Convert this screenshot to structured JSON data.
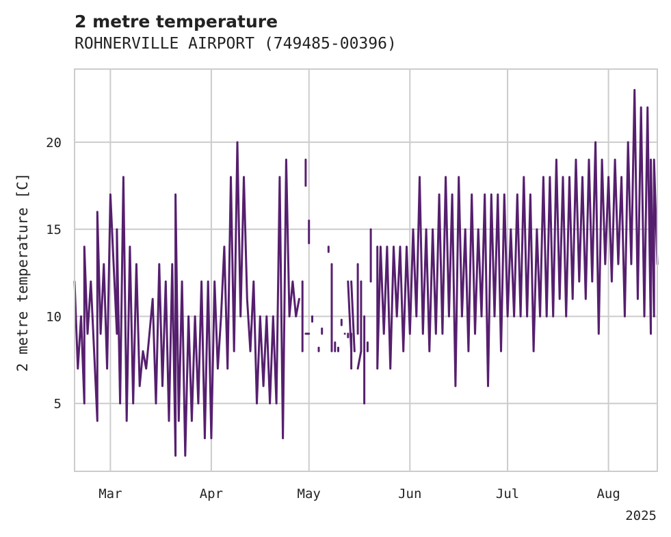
{
  "chart_data": {
    "type": "line",
    "title": "2 metre temperature",
    "subtitle": "ROHNERVILLE AIRPORT (749485-00396)",
    "xlabel": "",
    "ylabel": "2 metre temperature [C]",
    "x_ticks": [
      {
        "date": "2025-03-01",
        "label": "Mar"
      },
      {
        "date": "2025-04-01",
        "label": "Apr"
      },
      {
        "date": "2025-05-01",
        "label": "May"
      },
      {
        "date": "2025-06-01",
        "label": "Jun"
      },
      {
        "date": "2025-07-01",
        "label": "Jul"
      },
      {
        "date": "2025-08-01",
        "label": "Aug"
      }
    ],
    "x_year_label": "2025",
    "y_ticks": [
      5,
      10,
      15,
      20
    ],
    "xlim": [
      "2025-02-18",
      "2025-08-16"
    ],
    "ylim": [
      1.1,
      24.2
    ],
    "grid": true,
    "color": "#561f6e",
    "series": [
      {
        "points": [
          [
            "2025-02-18",
            12
          ],
          [
            "2025-02-19",
            7
          ],
          [
            "2025-02-20",
            10
          ],
          [
            "2025-02-21",
            5
          ],
          [
            "2025-02-21",
            14
          ],
          [
            "2025-02-22",
            9
          ],
          [
            "2025-02-23",
            12
          ],
          [
            "2025-02-24",
            8
          ],
          [
            "2025-02-25",
            4
          ],
          [
            "2025-02-25",
            16
          ],
          [
            "2025-02-26",
            9
          ],
          [
            "2025-02-27",
            13
          ],
          [
            "2025-02-28",
            7
          ],
          [
            "2025-03-01",
            17
          ],
          [
            "2025-03-02",
            13
          ],
          [
            "2025-03-03",
            9
          ],
          [
            "2025-03-03",
            15
          ],
          [
            "2025-03-04",
            5
          ],
          [
            "2025-03-05",
            18
          ],
          [
            "2025-03-06",
            4
          ],
          [
            "2025-03-07",
            14
          ],
          [
            "2025-03-08",
            5
          ],
          [
            "2025-03-09",
            13
          ],
          [
            "2025-03-10",
            6
          ],
          [
            "2025-03-11",
            8
          ],
          [
            "2025-03-12",
            7
          ],
          [
            "2025-03-13",
            9
          ],
          [
            "2025-03-14",
            11
          ],
          [
            "2025-03-15",
            5
          ],
          [
            "2025-03-16",
            13
          ],
          [
            "2025-03-17",
            6
          ],
          [
            "2025-03-18",
            12
          ],
          [
            "2025-03-19",
            4
          ],
          [
            "2025-03-20",
            13
          ],
          [
            "2025-03-21",
            2
          ],
          [
            "2025-03-21",
            17
          ],
          [
            "2025-03-22",
            4
          ],
          [
            "2025-03-23",
            12
          ],
          [
            "2025-03-24",
            2
          ],
          [
            "2025-03-25",
            10
          ],
          [
            "2025-03-26",
            4
          ],
          [
            "2025-03-27",
            10
          ],
          [
            "2025-03-28",
            5
          ],
          [
            "2025-03-29",
            12
          ],
          [
            "2025-03-30",
            3
          ],
          [
            "2025-03-31",
            12
          ],
          [
            "2025-04-01",
            3
          ],
          [
            "2025-04-02",
            12
          ],
          [
            "2025-04-03",
            7
          ],
          [
            "2025-04-04",
            10
          ],
          [
            "2025-04-05",
            14
          ],
          [
            "2025-04-06",
            7
          ],
          [
            "2025-04-07",
            18
          ],
          [
            "2025-04-08",
            8
          ],
          [
            "2025-04-09",
            20
          ],
          [
            "2025-04-10",
            10
          ],
          [
            "2025-04-11",
            18
          ],
          [
            "2025-04-12",
            11
          ],
          [
            "2025-04-13",
            8
          ],
          [
            "2025-04-14",
            12
          ],
          [
            "2025-04-15",
            5
          ],
          [
            "2025-04-16",
            10
          ],
          [
            "2025-04-17",
            6
          ],
          [
            "2025-04-18",
            10
          ],
          [
            "2025-04-19",
            5
          ],
          [
            "2025-04-20",
            10
          ],
          [
            "2025-04-21",
            5
          ],
          [
            "2025-04-22",
            18
          ],
          [
            "2025-04-23",
            3
          ],
          [
            "2025-04-24",
            19
          ],
          [
            "2025-04-25",
            10
          ],
          [
            "2025-04-26",
            12
          ],
          [
            "2025-04-27",
            10
          ],
          [
            "2025-04-28",
            11
          ]
        ]
      },
      {
        "points": [
          [
            "2025-04-29",
            12
          ],
          [
            "2025-04-29",
            8
          ]
        ]
      },
      {
        "points": [
          [
            "2025-04-30",
            19
          ],
          [
            "2025-04-30",
            17.5
          ]
        ]
      },
      {
        "points": [
          [
            "2025-05-01",
            15.5
          ],
          [
            "2025-05-01",
            14.2
          ]
        ]
      },
      {
        "points": [
          [
            "2025-04-30",
            9
          ],
          [
            "2025-05-01",
            9
          ]
        ]
      },
      {
        "points": [
          [
            "2025-05-02",
            10
          ],
          [
            "2025-05-02",
            9.7
          ]
        ]
      },
      {
        "points": [
          [
            "2025-05-04",
            8
          ],
          [
            "2025-05-04",
            8.2
          ]
        ]
      },
      {
        "points": [
          [
            "2025-05-05",
            9.3
          ],
          [
            "2025-05-05",
            9
          ]
        ]
      },
      {
        "points": [
          [
            "2025-05-07",
            14
          ],
          [
            "2025-05-07",
            13.7
          ]
        ]
      },
      {
        "points": [
          [
            "2025-05-08",
            13
          ],
          [
            "2025-05-08",
            8
          ]
        ]
      },
      {
        "points": [
          [
            "2025-05-09",
            8.5
          ],
          [
            "2025-05-09",
            8
          ]
        ]
      },
      {
        "points": [
          [
            "2025-05-10",
            8
          ],
          [
            "2025-05-10",
            8.2
          ]
        ]
      },
      {
        "points": [
          [
            "2025-05-11",
            9.8
          ],
          [
            "2025-05-11",
            9.5
          ]
        ]
      },
      {
        "points": [
          [
            "2025-05-12",
            9
          ],
          [
            "2025-05-12",
            9
          ]
        ]
      },
      {
        "points": [
          [
            "2025-05-13",
            9
          ],
          [
            "2025-05-13",
            8.8
          ]
        ]
      },
      {
        "points": [
          [
            "2025-05-13",
            12
          ],
          [
            "2025-05-14",
            8
          ]
        ]
      },
      {
        "points": [
          [
            "2025-05-14",
            7
          ],
          [
            "2025-05-14",
            9
          ]
        ]
      },
      {
        "points": [
          [
            "2025-05-14",
            12
          ],
          [
            "2025-05-15",
            8
          ]
        ]
      },
      {
        "points": [
          [
            "2025-05-16",
            13
          ],
          [
            "2025-05-16",
            9
          ]
        ]
      },
      {
        "points": [
          [
            "2025-05-16",
            7
          ],
          [
            "2025-05-17",
            8
          ]
        ]
      },
      {
        "points": [
          [
            "2025-05-17",
            12
          ],
          [
            "2025-05-17",
            8
          ]
        ]
      },
      {
        "points": [
          [
            "2025-05-18",
            10
          ],
          [
            "2025-05-18",
            5
          ]
        ]
      },
      {
        "points": [
          [
            "2025-05-19",
            8
          ],
          [
            "2025-05-19",
            8.5
          ]
        ]
      },
      {
        "points": [
          [
            "2025-05-20",
            15
          ],
          [
            "2025-05-20",
            12
          ]
        ]
      },
      {
        "points": [
          [
            "2025-05-22",
            14
          ],
          [
            "2025-05-22",
            7
          ],
          [
            "2025-05-23",
            14
          ],
          [
            "2025-05-24",
            9
          ],
          [
            "2025-05-25",
            14
          ],
          [
            "2025-05-26",
            7
          ],
          [
            "2025-05-27",
            14
          ],
          [
            "2025-05-28",
            10
          ],
          [
            "2025-05-29",
            14
          ],
          [
            "2025-05-30",
            8
          ],
          [
            "2025-05-31",
            14
          ],
          [
            "2025-06-01",
            9
          ],
          [
            "2025-06-02",
            15
          ],
          [
            "2025-06-03",
            10
          ],
          [
            "2025-06-04",
            18
          ],
          [
            "2025-06-05",
            9
          ],
          [
            "2025-06-06",
            15
          ],
          [
            "2025-06-07",
            8
          ],
          [
            "2025-06-08",
            15
          ],
          [
            "2025-06-09",
            9
          ],
          [
            "2025-06-10",
            17
          ],
          [
            "2025-06-11",
            9
          ],
          [
            "2025-06-12",
            18
          ],
          [
            "2025-06-13",
            10
          ],
          [
            "2025-06-14",
            17
          ],
          [
            "2025-06-15",
            6
          ],
          [
            "2025-06-16",
            18
          ],
          [
            "2025-06-17",
            10
          ],
          [
            "2025-06-18",
            15
          ],
          [
            "2025-06-19",
            8
          ],
          [
            "2025-06-20",
            17
          ],
          [
            "2025-06-21",
            9
          ],
          [
            "2025-06-22",
            15
          ],
          [
            "2025-06-23",
            10
          ],
          [
            "2025-06-24",
            17
          ],
          [
            "2025-06-25",
            6
          ],
          [
            "2025-06-26",
            17
          ],
          [
            "2025-06-27",
            10
          ],
          [
            "2025-06-28",
            17
          ],
          [
            "2025-06-29",
            8
          ],
          [
            "2025-06-30",
            17
          ],
          [
            "2025-07-01",
            10
          ],
          [
            "2025-07-02",
            15
          ],
          [
            "2025-07-03",
            10
          ],
          [
            "2025-07-04",
            17
          ],
          [
            "2025-07-05",
            10
          ],
          [
            "2025-07-06",
            18
          ],
          [
            "2025-07-07",
            10
          ],
          [
            "2025-07-08",
            17
          ],
          [
            "2025-07-09",
            8
          ],
          [
            "2025-07-10",
            15
          ],
          [
            "2025-07-11",
            10
          ],
          [
            "2025-07-12",
            18
          ],
          [
            "2025-07-13",
            10
          ],
          [
            "2025-07-14",
            18
          ],
          [
            "2025-07-15",
            10
          ],
          [
            "2025-07-16",
            19
          ],
          [
            "2025-07-17",
            11
          ],
          [
            "2025-07-18",
            18
          ],
          [
            "2025-07-19",
            10
          ],
          [
            "2025-07-20",
            18
          ],
          [
            "2025-07-21",
            11
          ],
          [
            "2025-07-22",
            19
          ],
          [
            "2025-07-23",
            12
          ],
          [
            "2025-07-24",
            18
          ],
          [
            "2025-07-25",
            11
          ],
          [
            "2025-07-26",
            19
          ],
          [
            "2025-07-27",
            12
          ],
          [
            "2025-07-28",
            20
          ],
          [
            "2025-07-29",
            9
          ],
          [
            "2025-07-30",
            19
          ],
          [
            "2025-07-31",
            13
          ],
          [
            "2025-08-01",
            18
          ],
          [
            "2025-08-02",
            12
          ],
          [
            "2025-08-03",
            19
          ],
          [
            "2025-08-04",
            13
          ],
          [
            "2025-08-05",
            18
          ],
          [
            "2025-08-06",
            10
          ],
          [
            "2025-08-07",
            20
          ],
          [
            "2025-08-08",
            13
          ],
          [
            "2025-08-09",
            23
          ],
          [
            "2025-08-10",
            11
          ],
          [
            "2025-08-11",
            22
          ],
          [
            "2025-08-12",
            10
          ],
          [
            "2025-08-13",
            22
          ],
          [
            "2025-08-14",
            9
          ],
          [
            "2025-08-14",
            19
          ],
          [
            "2025-08-15",
            10
          ],
          [
            "2025-08-15",
            19
          ],
          [
            "2025-08-16",
            13
          ]
        ]
      }
    ]
  }
}
